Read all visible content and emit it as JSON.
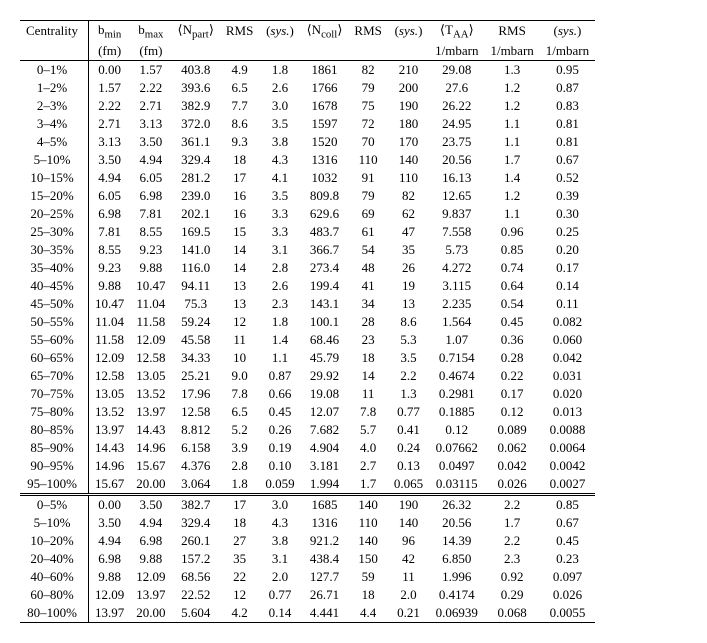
{
  "headers": {
    "row1": [
      "Centrality",
      "b<sub>min</sub>",
      "b<sub>max</sub>",
      "⟨N<sub>part</sub>⟩",
      "RMS",
      "(<i>sys.</i>)",
      "⟨N<sub>coll</sub>⟩",
      "RMS",
      "(<i>sys.</i>)",
      "⟨T<sub>AA</sub>⟩",
      "RMS",
      "(<i>sys.</i>)"
    ],
    "row2": [
      "",
      "(fm)",
      "(fm)",
      "",
      "",
      "",
      "",
      "",
      "",
      "1/mbarn",
      "1/mbarn",
      "1/mbarn"
    ]
  },
  "rows_section1": [
    [
      "0–1%",
      "0.00",
      "1.57",
      "403.8",
      "4.9",
      "1.8",
      "1861",
      "82",
      "210",
      "29.08",
      "1.3",
      "0.95"
    ],
    [
      "1–2%",
      "1.57",
      "2.22",
      "393.6",
      "6.5",
      "2.6",
      "1766",
      "79",
      "200",
      "27.6",
      "1.2",
      "0.87"
    ],
    [
      "2–3%",
      "2.22",
      "2.71",
      "382.9",
      "7.7",
      "3.0",
      "1678",
      "75",
      "190",
      "26.22",
      "1.2",
      "0.83"
    ],
    [
      "3–4%",
      "2.71",
      "3.13",
      "372.0",
      "8.6",
      "3.5",
      "1597",
      "72",
      "180",
      "24.95",
      "1.1",
      "0.81"
    ],
    [
      "4–5%",
      "3.13",
      "3.50",
      "361.1",
      "9.3",
      "3.8",
      "1520",
      "70",
      "170",
      "23.75",
      "1.1",
      "0.81"
    ],
    [
      "5–10%",
      "3.50",
      "4.94",
      "329.4",
      "18",
      "4.3",
      "1316",
      "110",
      "140",
      "20.56",
      "1.7",
      "0.67"
    ],
    [
      "10–15%",
      "4.94",
      "6.05",
      "281.2",
      "17",
      "4.1",
      "1032",
      "91",
      "110",
      "16.13",
      "1.4",
      "0.52"
    ],
    [
      "15–20%",
      "6.05",
      "6.98",
      "239.0",
      "16",
      "3.5",
      "809.8",
      "79",
      "82",
      "12.65",
      "1.2",
      "0.39"
    ],
    [
      "20–25%",
      "6.98",
      "7.81",
      "202.1",
      "16",
      "3.3",
      "629.6",
      "69",
      "62",
      "9.837",
      "1.1",
      "0.30"
    ],
    [
      "25–30%",
      "7.81",
      "8.55",
      "169.5",
      "15",
      "3.3",
      "483.7",
      "61",
      "47",
      "7.558",
      "0.96",
      "0.25"
    ],
    [
      "30–35%",
      "8.55",
      "9.23",
      "141.0",
      "14",
      "3.1",
      "366.7",
      "54",
      "35",
      "5.73",
      "0.85",
      "0.20"
    ],
    [
      "35–40%",
      "9.23",
      "9.88",
      "116.0",
      "14",
      "2.8",
      "273.4",
      "48",
      "26",
      "4.272",
      "0.74",
      "0.17"
    ],
    [
      "40–45%",
      "9.88",
      "10.47",
      "94.11",
      "13",
      "2.6",
      "199.4",
      "41",
      "19",
      "3.115",
      "0.64",
      "0.14"
    ],
    [
      "45–50%",
      "10.47",
      "11.04",
      "75.3",
      "13",
      "2.3",
      "143.1",
      "34",
      "13",
      "2.235",
      "0.54",
      "0.11"
    ],
    [
      "50–55%",
      "11.04",
      "11.58",
      "59.24",
      "12",
      "1.8",
      "100.1",
      "28",
      "8.6",
      "1.564",
      "0.45",
      "0.082"
    ],
    [
      "55–60%",
      "11.58",
      "12.09",
      "45.58",
      "11",
      "1.4",
      "68.46",
      "23",
      "5.3",
      "1.07",
      "0.36",
      "0.060"
    ],
    [
      "60–65%",
      "12.09",
      "12.58",
      "34.33",
      "10",
      "1.1",
      "45.79",
      "18",
      "3.5",
      "0.7154",
      "0.28",
      "0.042"
    ],
    [
      "65–70%",
      "12.58",
      "13.05",
      "25.21",
      "9.0",
      "0.87",
      "29.92",
      "14",
      "2.2",
      "0.4674",
      "0.22",
      "0.031"
    ],
    [
      "70–75%",
      "13.05",
      "13.52",
      "17.96",
      "7.8",
      "0.66",
      "19.08",
      "11",
      "1.3",
      "0.2981",
      "0.17",
      "0.020"
    ],
    [
      "75–80%",
      "13.52",
      "13.97",
      "12.58",
      "6.5",
      "0.45",
      "12.07",
      "7.8",
      "0.77",
      "0.1885",
      "0.12",
      "0.013"
    ],
    [
      "80–85%",
      "13.97",
      "14.43",
      "8.812",
      "5.2",
      "0.26",
      "7.682",
      "5.7",
      "0.41",
      "0.12",
      "0.089",
      "0.0088"
    ],
    [
      "85–90%",
      "14.43",
      "14.96",
      "6.158",
      "3.9",
      "0.19",
      "4.904",
      "4.0",
      "0.24",
      "0.07662",
      "0.062",
      "0.0064"
    ],
    [
      "90–95%",
      "14.96",
      "15.67",
      "4.376",
      "2.8",
      "0.10",
      "3.181",
      "2.7",
      "0.13",
      "0.0497",
      "0.042",
      "0.0042"
    ],
    [
      "95–100%",
      "15.67",
      "20.00",
      "3.064",
      "1.8",
      "0.059",
      "1.994",
      "1.7",
      "0.065",
      "0.03115",
      "0.026",
      "0.0027"
    ]
  ],
  "rows_section2": [
    [
      "0–5%",
      "0.00",
      "3.50",
      "382.7",
      "17",
      "3.0",
      "1685",
      "140",
      "190",
      "26.32",
      "2.2",
      "0.85"
    ],
    [
      "5–10%",
      "3.50",
      "4.94",
      "329.4",
      "18",
      "4.3",
      "1316",
      "110",
      "140",
      "20.56",
      "1.7",
      "0.67"
    ],
    [
      "10–20%",
      "4.94",
      "6.98",
      "260.1",
      "27",
      "3.8",
      "921.2",
      "140",
      "96",
      "14.39",
      "2.2",
      "0.45"
    ],
    [
      "20–40%",
      "6.98",
      "9.88",
      "157.2",
      "35",
      "3.1",
      "438.4",
      "150",
      "42",
      "6.850",
      "2.3",
      "0.23"
    ],
    [
      "40–60%",
      "9.88",
      "12.09",
      "68.56",
      "22",
      "2.0",
      "127.7",
      "59",
      "11",
      "1.996",
      "0.92",
      "0.097"
    ],
    [
      "60–80%",
      "12.09",
      "13.97",
      "22.52",
      "12",
      "0.77",
      "26.71",
      "18",
      "2.0",
      "0.4174",
      "0.29",
      "0.026"
    ],
    [
      "80–100%",
      "13.97",
      "20.00",
      "5.604",
      "4.2",
      "0.14",
      "4.441",
      "4.4",
      "0.21",
      "0.06939",
      "0.068",
      "0.0055"
    ]
  ]
}
